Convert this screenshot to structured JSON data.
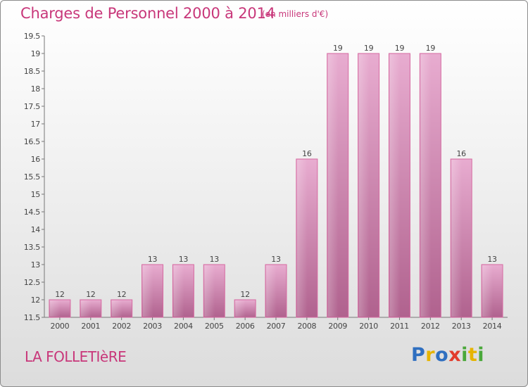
{
  "header": {
    "title": "Charges de Personnel 2000 à 2014",
    "subtitle": "(en milliers d'€)"
  },
  "footer": {
    "commune": "LA FOLLETIèRE",
    "logo_letters": [
      {
        "char": "P",
        "color": "#2f6fc0"
      },
      {
        "char": "r",
        "color": "#e6b400"
      },
      {
        "char": "o",
        "color": "#2f6fc0"
      },
      {
        "char": "x",
        "color": "#e23c2c"
      },
      {
        "char": "i",
        "color": "#4aa83a"
      },
      {
        "char": "t",
        "color": "#e6b400"
      },
      {
        "char": "i",
        "color": "#4aa83a"
      }
    ]
  },
  "colors": {
    "accent": "#c8377a",
    "bar": "#e4a8c8",
    "bar_edge": "#d66aa1"
  },
  "chart_data": {
    "type": "bar",
    "categories": [
      "2000",
      "2001",
      "2002",
      "2003",
      "2004",
      "2005",
      "2006",
      "2007",
      "2008",
      "2009",
      "2010",
      "2011",
      "2012",
      "2013",
      "2014"
    ],
    "values": [
      12,
      12,
      12,
      13,
      13,
      13,
      12,
      13,
      16,
      19,
      19,
      19,
      19,
      16,
      13
    ],
    "data_labels": [
      "12",
      "12",
      "12",
      "13",
      "13",
      "13",
      "12",
      "13",
      "16",
      "19",
      "19",
      "19",
      "19",
      "16",
      "13"
    ],
    "ylim": [
      11.5,
      19.5
    ],
    "yticks": [
      "11.5",
      "12",
      "12.5",
      "13",
      "13.5",
      "14",
      "14.5",
      "15",
      "15.5",
      "16",
      "16.5",
      "17",
      "17.5",
      "18",
      "18.5",
      "19",
      "19.5"
    ],
    "grid": false,
    "title": "Charges de Personnel 2000 à 2014",
    "xlabel": "",
    "ylabel": ""
  }
}
